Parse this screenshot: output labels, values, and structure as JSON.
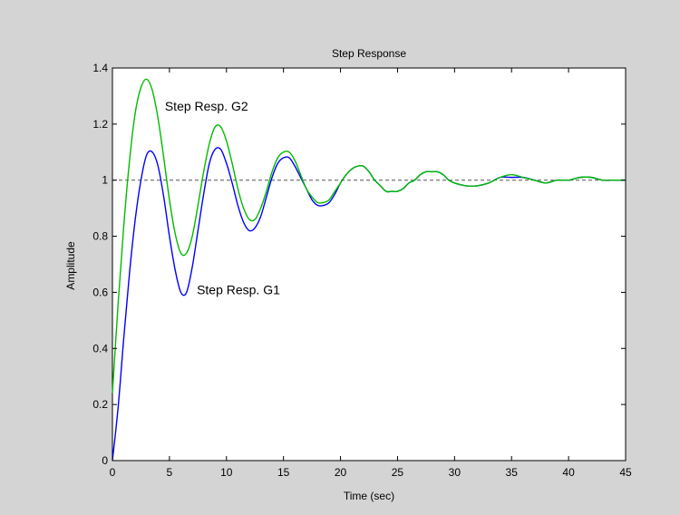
{
  "chart_data": {
    "type": "line",
    "title": "Step Response",
    "xlabel": "Time (sec)",
    "ylabel": "Amplitude",
    "xlim": [
      0,
      45
    ],
    "ylim": [
      0,
      1.4
    ],
    "x_ticks": [
      0,
      5,
      10,
      15,
      20,
      25,
      30,
      35,
      40,
      45
    ],
    "y_ticks": [
      0,
      0.2,
      0.4,
      0.6,
      0.8,
      1,
      1.2,
      1.4
    ],
    "x_tick_labels": [
      "0",
      "5",
      "10",
      "15",
      "20",
      "25",
      "30",
      "35",
      "40",
      "45"
    ],
    "y_tick_labels": [
      "0",
      "0.2",
      "0.4",
      "0.6",
      "0.8",
      "1",
      "1.2",
      "1.4"
    ],
    "grid": false,
    "reference_line": {
      "y": 1,
      "style": "dashed",
      "color": "#555555"
    },
    "series": [
      {
        "color": "#0000ff",
        "x": [
          0,
          0.5,
          1,
          1.5,
          2,
          2.5,
          3,
          3.5,
          4,
          4.5,
          5,
          5.5,
          6,
          6.5,
          7,
          7.5,
          8,
          8.5,
          9,
          9.5,
          10,
          10.5,
          11,
          11.5,
          12,
          12.5,
          13,
          13.5,
          14,
          14.5,
          15,
          15.5,
          16,
          16.5,
          17,
          17.5,
          18,
          18.5,
          19,
          19.5,
          20,
          20.5,
          21,
          21.5,
          22,
          22.5,
          23,
          23.5,
          24,
          24.5,
          25,
          25.5,
          26,
          26.5,
          27,
          27.5,
          28,
          28.5,
          29,
          29.5,
          30,
          31,
          32,
          33,
          34,
          35,
          36,
          37,
          38,
          39,
          40,
          41,
          42,
          43,
          44,
          45
        ],
        "y": [
          0,
          0.19,
          0.44,
          0.67,
          0.86,
          1.0,
          1.09,
          1.1,
          1.05,
          0.94,
          0.8,
          0.68,
          0.6,
          0.6,
          0.69,
          0.82,
          0.95,
          1.06,
          1.11,
          1.11,
          1.06,
          0.99,
          0.91,
          0.85,
          0.82,
          0.83,
          0.87,
          0.94,
          1.01,
          1.06,
          1.08,
          1.08,
          1.05,
          1.01,
          0.97,
          0.93,
          0.91,
          0.91,
          0.92,
          0.95,
          0.99,
          1.02,
          1.04,
          1.05,
          1.05,
          1.03,
          1.0,
          0.98,
          0.96,
          0.96,
          0.96,
          0.97,
          0.99,
          1.0,
          1.02,
          1.03,
          1.03,
          1.03,
          1.02,
          1.0,
          0.99,
          0.98,
          0.98,
          0.99,
          1.01,
          1.01,
          1.01,
          1.0,
          0.99,
          1.0,
          1.0,
          1.01,
          1.01,
          1.0,
          1.0,
          1.0
        ]
      },
      {
        "color": "#00bb00",
        "x": [
          0,
          0.5,
          1,
          1.5,
          2,
          2.5,
          3,
          3.5,
          4,
          4.5,
          5,
          5.5,
          6,
          6.5,
          7,
          7.5,
          8,
          8.5,
          9,
          9.5,
          10,
          10.5,
          11,
          11.5,
          12,
          12.5,
          13,
          13.5,
          14,
          14.5,
          15,
          15.5,
          16,
          16.5,
          17,
          17.5,
          18,
          18.5,
          19,
          19.5,
          20,
          20.5,
          21,
          21.5,
          22,
          22.5,
          23,
          23.5,
          24,
          24.5,
          25,
          25.5,
          26,
          26.5,
          27,
          27.5,
          28,
          28.5,
          29,
          29.5,
          30,
          31,
          32,
          33,
          34,
          35,
          36,
          37,
          38,
          39,
          40,
          41,
          42,
          43,
          44,
          45
        ],
        "y": [
          0.24,
          0.56,
          0.84,
          1.07,
          1.24,
          1.33,
          1.36,
          1.32,
          1.22,
          1.08,
          0.93,
          0.81,
          0.74,
          0.74,
          0.8,
          0.91,
          1.03,
          1.13,
          1.19,
          1.19,
          1.14,
          1.06,
          0.97,
          0.9,
          0.86,
          0.86,
          0.9,
          0.96,
          1.03,
          1.08,
          1.1,
          1.1,
          1.07,
          1.02,
          0.97,
          0.94,
          0.92,
          0.92,
          0.93,
          0.96,
          0.99,
          1.02,
          1.04,
          1.05,
          1.05,
          1.03,
          1.0,
          0.98,
          0.96,
          0.96,
          0.96,
          0.97,
          0.99,
          1.0,
          1.02,
          1.03,
          1.03,
          1.03,
          1.02,
          1.0,
          0.99,
          0.98,
          0.98,
          0.99,
          1.01,
          1.02,
          1.01,
          1.0,
          0.99,
          1.0,
          1.0,
          1.01,
          1.01,
          1.0,
          1.0,
          1.0
        ]
      }
    ],
    "annotations": [
      {
        "text": "Step Resp. G2",
        "x": 4.6,
        "y": 1.265
      },
      {
        "text": "Step Resp. G1",
        "x": 7.4,
        "y": 0.61
      }
    ]
  }
}
